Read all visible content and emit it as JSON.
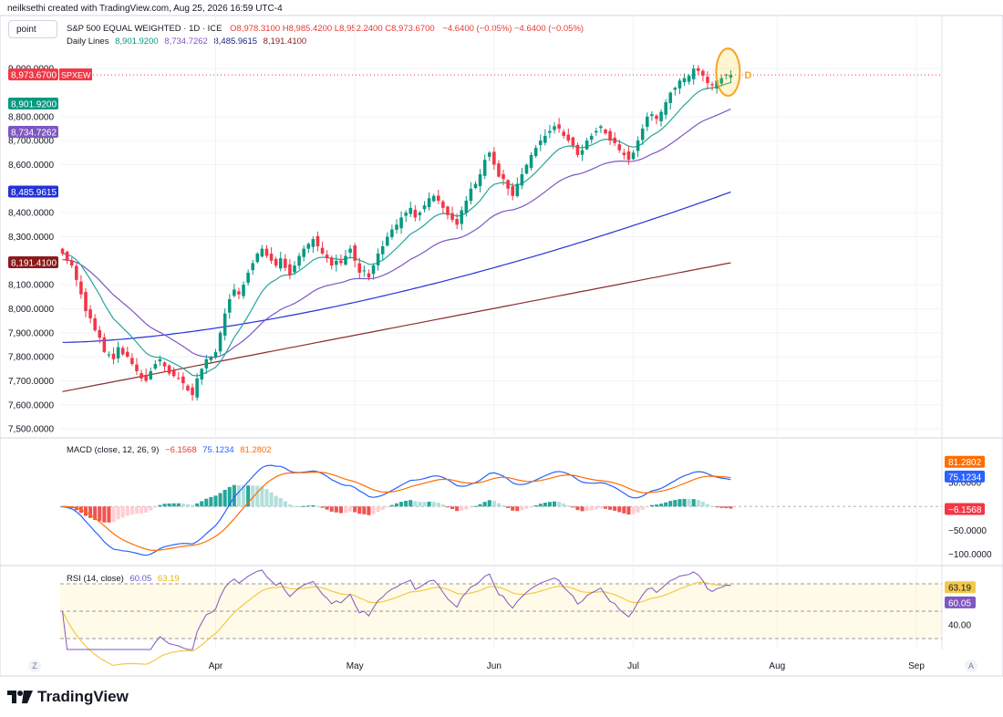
{
  "header": {
    "credit": "neilksethi created with TradingView.com, Aug 25, 2026 16:59 UTC-4",
    "symbol_button": "point",
    "title": "S&P 500 EQUAL WEIGHTED · 1D · ICE",
    "ohlc": "O8,978.3100  H8,985.4200  L8,952.2400  C8,973.6700",
    "change": "−4.6400 (−0.05%)  −4.6400 (−0.05%)",
    "ma_label": "Daily Lines",
    "ma_values": [
      "8,901.9200",
      "8,734.7262",
      "8,485.9615",
      "8,191.4100"
    ]
  },
  "macd_header": {
    "label": "MACD (close, 12, 26, 9)",
    "hist": "−6.1568",
    "macd": "75.1234",
    "signal": "81.2802"
  },
  "rsi_header": {
    "label": "RSI (14, close)",
    "rsi": "60.05",
    "ma": "63.19"
  },
  "branding": {
    "name": "TradingView"
  },
  "corners": {
    "left": "Z",
    "right": "A"
  },
  "colors": {
    "up": "#089981",
    "down": "#f23645",
    "ma20": "#26a69a",
    "ma50": "#7e57c2",
    "ma100": "#2432d8",
    "ma200": "#8b2d2d",
    "macd": "#2962ff",
    "signal": "#ff6d00",
    "rsi": "#7e57c2",
    "rsi_ma": "#f2c94c",
    "hist_pos_strong": "#26a69a",
    "hist_pos_weak": "#b2dfdb",
    "hist_neg_strong": "#ef5350",
    "hist_neg_weak": "#ffcdd2"
  },
  "chart_data": [
    {
      "type": "candlestick",
      "title": "S&P 500 EQUAL WEIGHTED",
      "y_ticks": [
        "9,000.0000",
        "8,800.0000",
        "8,700.0000",
        "8,600.0000",
        "8,400.0000",
        "8,300.0000",
        "8,100.0000",
        "8,000.0000",
        "7,900.0000",
        "7,800.0000",
        "7,700.0000",
        "7,600.0000",
        "7,500.0000"
      ],
      "y_tick_values": [
        9000,
        8800,
        8700,
        8600,
        8400,
        8300,
        8100,
        8000,
        7900,
        7800,
        7700,
        7600,
        7500
      ],
      "ylim": [
        7470,
        9050
      ],
      "x_ticks": [
        "Apr",
        "May",
        "Jun",
        "Jul",
        "Aug",
        "Sep"
      ],
      "x_tick_index": [
        33,
        63,
        93,
        123,
        154,
        184
      ],
      "n_slots": 190,
      "price_tags": [
        {
          "label": "8,973.6700",
          "value": 8973.67,
          "color": "#f23645",
          "tag": "SPXEW"
        },
        {
          "label": "8,901.9200",
          "value": 8901.92,
          "color": "#089981"
        },
        {
          "label": "8,734.7262",
          "value": 8734.73,
          "color": "#7e57c2"
        },
        {
          "label": "8,485.9615",
          "value": 8485.96,
          "color": "#2432d8"
        },
        {
          "label": "8,191.4100",
          "value": 8191.41,
          "color": "#8b1a1a"
        }
      ],
      "annotation": "D",
      "closes": [
        8230,
        8200,
        8180,
        8120,
        8060,
        7990,
        7960,
        7910,
        7880,
        7820,
        7810,
        7790,
        7840,
        7810,
        7800,
        7770,
        7740,
        7710,
        7700,
        7740,
        7770,
        7790,
        7760,
        7730,
        7720,
        7710,
        7690,
        7660,
        7640,
        7710,
        7750,
        7790,
        7800,
        7820,
        7900,
        7980,
        8040,
        8080,
        8060,
        8100,
        8150,
        8190,
        8230,
        8250,
        8220,
        8200,
        8180,
        8210,
        8170,
        8140,
        8180,
        8220,
        8250,
        8270,
        8290,
        8260,
        8230,
        8210,
        8180,
        8200,
        8190,
        8220,
        8250,
        8200,
        8150,
        8160,
        8130,
        8180,
        8230,
        8260,
        8300,
        8330,
        8350,
        8380,
        8400,
        8420,
        8380,
        8400,
        8430,
        8460,
        8470,
        8450,
        8420,
        8390,
        8370,
        8350,
        8410,
        8450,
        8500,
        8520,
        8560,
        8620,
        8650,
        8600,
        8550,
        8540,
        8500,
        8470,
        8520,
        8560,
        8600,
        8640,
        8670,
        8700,
        8720,
        8740,
        8760,
        8750,
        8720,
        8700,
        8680,
        8640,
        8660,
        8700,
        8720,
        8740,
        8760,
        8730,
        8700,
        8690,
        8660,
        8640,
        8620,
        8650,
        8700,
        8750,
        8800,
        8810,
        8790,
        8820,
        8860,
        8900,
        8920,
        8950,
        8960,
        8970,
        9000,
        8990,
        8970,
        8940,
        8930,
        8950,
        8960,
        8975,
        8973.67
      ],
      "ma20": [
        8150,
        8120,
        8090,
        8050,
        8010,
        7970,
        7930,
        7890,
        7860,
        7840,
        7820,
        7800,
        7790,
        7780,
        7775,
        7770,
        7770,
        7765,
        7760,
        7760,
        7765,
        7770,
        7775,
        7780,
        7790,
        7805,
        7820,
        7840,
        7860,
        7880,
        7905,
        7935,
        7965,
        7995,
        8025,
        8055,
        8085,
        8115,
        8140,
        8160,
        8180,
        8195,
        8205,
        8210,
        8215,
        8220,
        8225,
        8228,
        8230,
        8232,
        8236,
        8240,
        8245,
        8250,
        8256,
        8262,
        8270,
        8278,
        8287,
        8296,
        8306,
        8316,
        8328,
        8340,
        8352,
        8364,
        8376,
        8388,
        8400,
        8412,
        8424,
        8436,
        8448,
        8460,
        8470,
        8480,
        8490,
        8500,
        8510,
        8520,
        8532,
        8544,
        8556,
        8568,
        8580,
        8592,
        8604,
        8616,
        8628,
        8640,
        8650,
        8660,
        8670,
        8678,
        8686,
        8694,
        8702,
        8710,
        8718,
        8726,
        8734,
        8742,
        8750,
        8758,
        8766,
        8774,
        8782,
        8790,
        8798,
        8806,
        8814,
        8822,
        8830,
        8838,
        8846,
        8854,
        8862,
        8870,
        8878,
        8886,
        8894,
        8901.92
      ]
    },
    {
      "type": "macd",
      "title": "MACD (close, 12, 26, 9)",
      "y_ticks": [
        "50.0000",
        "−50.0000",
        "−100.0000"
      ],
      "y_tick_values": [
        50,
        -50,
        -100
      ],
      "ylim": [
        -120,
        140
      ],
      "value_tags": [
        {
          "label": "81.2802",
          "value": 81.28,
          "color": "#ff6d00"
        },
        {
          "label": "75.1234",
          "value": 75.12,
          "color": "#2962ff"
        },
        {
          "label": "−6.1568",
          "value": -6.16,
          "color": "#f23645"
        }
      ]
    },
    {
      "type": "rsi",
      "title": "RSI (14, close)",
      "y_ticks": [
        "40.00"
      ],
      "y_tick_values": [
        40
      ],
      "ylim": [
        22,
        82
      ],
      "bands": [
        70,
        50,
        30
      ],
      "value_tags": [
        {
          "label": "63.19",
          "value": 63.19,
          "color": "#f2c94c"
        },
        {
          "label": "60.05",
          "value": 60.05,
          "color": "#7e57c2"
        }
      ]
    }
  ]
}
